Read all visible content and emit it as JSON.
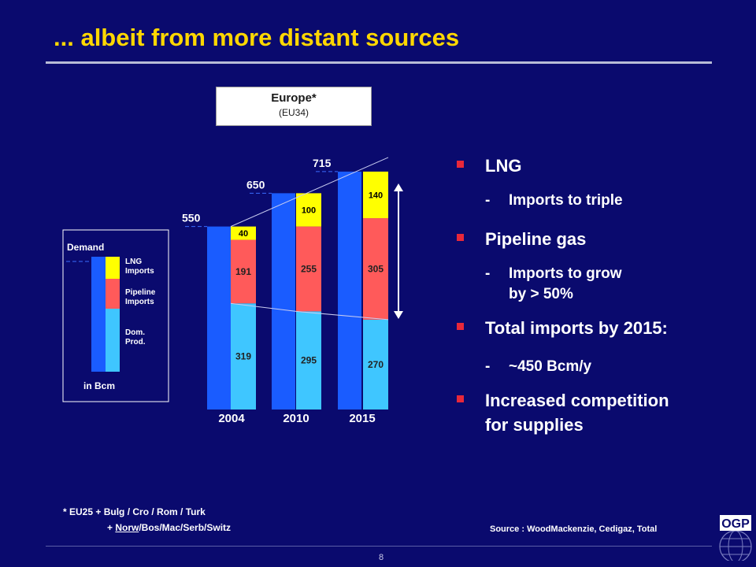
{
  "slide": {
    "title": "... albeit from more distant sources",
    "region_title": "Europe*",
    "region_sub": "(EU34)",
    "page_number": "8",
    "footnote_line1": "* EU25 + Bulg / Cro / Rom / Turk",
    "footnote_line2_underlined": "Norw",
    "footnote_line2_prefix": "+ ",
    "footnote_line2_rest": "/Bos/Mac/Serb/Switz",
    "source": "Source : WoodMackenzie, Cedigaz, Total",
    "logo_text": "OGP"
  },
  "legend": {
    "title": "Demand",
    "items": [
      "LNG Imports",
      "Pipeline Imports",
      "Dom. Prod."
    ],
    "unit": "in Bcm"
  },
  "bullets": [
    {
      "text": "LNG",
      "sub": [
        "Imports to triple"
      ]
    },
    {
      "text": "Pipeline gas",
      "sub": [
        "Imports to grow",
        "by > 50%"
      ]
    },
    {
      "text": "Total imports by 2015:",
      "sub": [
        "~450 Bcm/y"
      ]
    },
    {
      "text": "Increased competition",
      "text2": "for supplies",
      "sub": []
    }
  ],
  "chart_data": {
    "type": "bar",
    "categories": [
      "2004",
      "2010",
      "2015"
    ],
    "totals": [
      550,
      650,
      715
    ],
    "series": [
      {
        "name": "Dom. Prod.",
        "values": [
          319,
          295,
          270
        ],
        "color": "#3fc6ff"
      },
      {
        "name": "Pipeline Imports",
        "values": [
          191,
          255,
          305
        ],
        "color": "#ff5a5a"
      },
      {
        "name": "LNG Imports",
        "values": [
          40,
          100,
          140
        ],
        "color": "#ffff00"
      }
    ],
    "demand_color": "#1a5cff",
    "ylim": [
      0,
      715
    ]
  }
}
